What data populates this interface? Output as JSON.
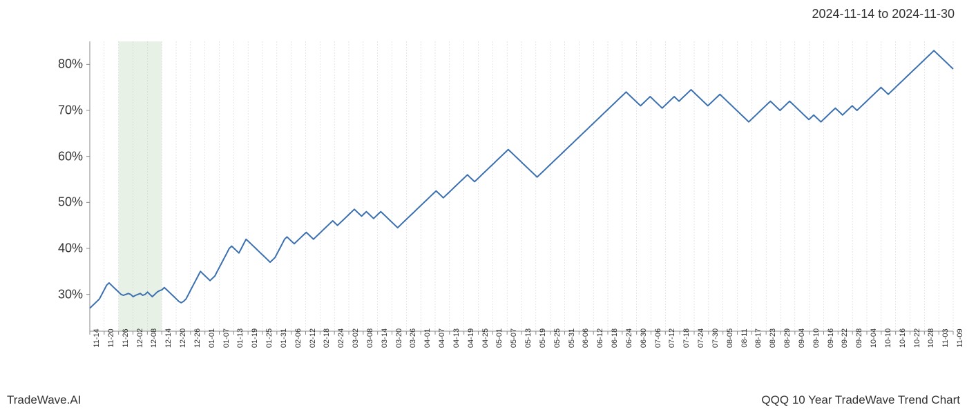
{
  "header": {
    "date_range": "2024-11-14 to 2024-11-30"
  },
  "footer": {
    "left": "TradeWave.AI",
    "right": "QQQ 10 Year TradeWave Trend Chart"
  },
  "chart": {
    "type": "line",
    "background_color": "#ffffff",
    "grid_color": "#cccccc",
    "line_color": "#3a6fb0",
    "line_width": 2,
    "highlight_band": {
      "color": "#d4e6d0",
      "opacity": 0.55,
      "x_start_index": 2,
      "x_end_index": 5
    },
    "spine_color": "#888888",
    "y_axis": {
      "min": 22,
      "max": 85,
      "ticks": [
        30,
        40,
        50,
        60,
        70,
        80
      ],
      "tick_suffix": "%",
      "label_fontsize": 18,
      "label_color": "#333333"
    },
    "x_axis": {
      "labels": [
        "11-14",
        "11-20",
        "11-26",
        "12-02",
        "12-08",
        "12-14",
        "12-20",
        "12-26",
        "01-01",
        "01-07",
        "01-13",
        "01-19",
        "01-25",
        "01-31",
        "02-06",
        "02-12",
        "02-18",
        "02-24",
        "03-02",
        "03-08",
        "03-14",
        "03-20",
        "03-26",
        "04-01",
        "04-07",
        "04-13",
        "04-19",
        "04-25",
        "05-01",
        "05-07",
        "05-13",
        "05-19",
        "05-25",
        "05-31",
        "06-06",
        "06-12",
        "06-18",
        "06-24",
        "06-30",
        "07-06",
        "07-12",
        "07-18",
        "07-24",
        "07-30",
        "08-05",
        "08-11",
        "08-17",
        "08-23",
        "08-29",
        "09-04",
        "09-10",
        "09-16",
        "09-22",
        "09-28",
        "10-04",
        "10-10",
        "10-16",
        "10-22",
        "10-28",
        "11-03",
        "11-09"
      ],
      "label_fontsize": 11,
      "label_color": "#333333",
      "rotation": -90
    },
    "series": {
      "values": [
        27,
        27.5,
        28,
        28.5,
        29,
        30,
        31,
        32,
        32.5,
        32,
        31.5,
        31,
        30.5,
        30,
        29.8,
        30,
        30.2,
        30,
        29.5,
        29.8,
        30,
        30.2,
        29.8,
        30,
        30.5,
        30,
        29.5,
        30,
        30.5,
        30.8,
        31,
        31.5,
        31,
        30.5,
        30,
        29.5,
        29,
        28.5,
        28.2,
        28.5,
        29,
        30,
        31,
        32,
        33,
        34,
        35,
        34.5,
        34,
        33.5,
        33,
        33.5,
        34,
        35,
        36,
        37,
        38,
        39,
        40,
        40.5,
        40,
        39.5,
        39,
        40,
        41,
        42,
        41.5,
        41,
        40.5,
        40,
        39.5,
        39,
        38.5,
        38,
        37.5,
        37,
        37.5,
        38,
        39,
        40,
        41,
        42,
        42.5,
        42,
        41.5,
        41,
        41.5,
        42,
        42.5,
        43,
        43.5,
        43,
        42.5,
        42,
        42.5,
        43,
        43.5,
        44,
        44.5,
        45,
        45.5,
        46,
        45.5,
        45,
        45.5,
        46,
        46.5,
        47,
        47.5,
        48,
        48.5,
        48,
        47.5,
        47,
        47.5,
        48,
        47.5,
        47,
        46.5,
        47,
        47.5,
        48,
        47.5,
        47,
        46.5,
        46,
        45.5,
        45,
        44.5,
        45,
        45.5,
        46,
        46.5,
        47,
        47.5,
        48,
        48.5,
        49,
        49.5,
        50,
        50.5,
        51,
        51.5,
        52,
        52.5,
        52,
        51.5,
        51,
        51.5,
        52,
        52.5,
        53,
        53.5,
        54,
        54.5,
        55,
        55.5,
        56,
        55.5,
        55,
        54.5,
        55,
        55.5,
        56,
        56.5,
        57,
        57.5,
        58,
        58.5,
        59,
        59.5,
        60,
        60.5,
        61,
        61.5,
        61,
        60.5,
        60,
        59.5,
        59,
        58.5,
        58,
        57.5,
        57,
        56.5,
        56,
        55.5,
        56,
        56.5,
        57,
        57.5,
        58,
        58.5,
        59,
        59.5,
        60,
        60.5,
        61,
        61.5,
        62,
        62.5,
        63,
        63.5,
        64,
        64.5,
        65,
        65.5,
        66,
        66.5,
        67,
        67.5,
        68,
        68.5,
        69,
        69.5,
        70,
        70.5,
        71,
        71.5,
        72,
        72.5,
        73,
        73.5,
        74,
        73.5,
        73,
        72.5,
        72,
        71.5,
        71,
        71.5,
        72,
        72.5,
        73,
        72.5,
        72,
        71.5,
        71,
        70.5,
        71,
        71.5,
        72,
        72.5,
        73,
        72.5,
        72,
        72.5,
        73,
        73.5,
        74,
        74.5,
        74,
        73.5,
        73,
        72.5,
        72,
        71.5,
        71,
        71.5,
        72,
        72.5,
        73,
        73.5,
        73,
        72.5,
        72,
        71.5,
        71,
        70.5,
        70,
        69.5,
        69,
        68.5,
        68,
        67.5,
        68,
        68.5,
        69,
        69.5,
        70,
        70.5,
        71,
        71.5,
        72,
        71.5,
        71,
        70.5,
        70,
        70.5,
        71,
        71.5,
        72,
        71.5,
        71,
        70.5,
        70,
        69.5,
        69,
        68.5,
        68,
        68.5,
        69,
        68.5,
        68,
        67.5,
        68,
        68.5,
        69,
        69.5,
        70,
        70.5,
        70,
        69.5,
        69,
        69.5,
        70,
        70.5,
        71,
        70.5,
        70,
        70.5,
        71,
        71.5,
        72,
        72.5,
        73,
        73.5,
        74,
        74.5,
        75,
        74.5,
        74,
        73.5,
        74,
        74.5,
        75,
        75.5,
        76,
        76.5,
        77,
        77.5,
        78,
        78.5,
        79,
        79.5,
        80,
        80.5,
        81,
        81.5,
        82,
        82.5,
        83,
        82.5,
        82,
        81.5,
        81,
        80.5,
        80,
        79.5,
        79
      ]
    }
  }
}
